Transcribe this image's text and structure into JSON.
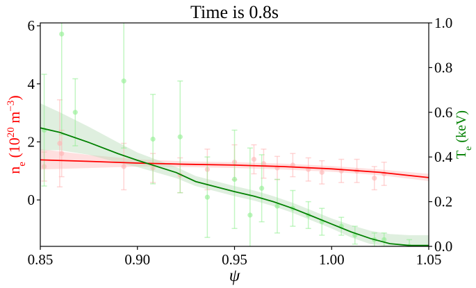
{
  "chart_data": {
    "type": "scatter",
    "title": "Time is 0.8s",
    "xlabel": "ψ",
    "ylabel_left": {
      "base": "n",
      "sub": "e",
      "paren_open": " (10",
      "sup1": "20",
      "unit": " m",
      "sup2": "−3",
      "paren_close": ")"
    },
    "ylabel_right": {
      "base": "T",
      "sub": "e",
      "rest": " (keV)"
    },
    "xlim": [
      0.85,
      1.05
    ],
    "ylim_left": [
      -1.6,
      6.1
    ],
    "ylim_right": [
      0.0,
      1.0
    ],
    "x_ticks": [
      "0.85",
      "0.90",
      "0.95",
      "1.00",
      "1.05"
    ],
    "y_ticks_left": [
      "0",
      "2",
      "4",
      "6"
    ],
    "y_ticks_right": [
      "0.0",
      "0.2",
      "0.4",
      "0.6",
      "0.8",
      "1.0"
    ],
    "grid": false,
    "colors": {
      "ne": "#ff0000",
      "ne_band": "#ffb8b8",
      "ne_points": "#ffb3b3",
      "te": "#008000",
      "te_band": "#b9dcb9",
      "te_points": "#90ee90"
    },
    "series": [
      {
        "key": "ne_fit",
        "kind": "line",
        "axis": "left",
        "x": [
          0.85,
          0.875,
          0.9,
          0.925,
          0.95,
          0.975,
          1.0,
          1.025,
          1.05
        ],
        "y": [
          1.38,
          1.33,
          1.27,
          1.23,
          1.2,
          1.15,
          1.07,
          0.95,
          0.77
        ],
        "band_lower": [
          1.05,
          1.1,
          1.15,
          1.13,
          1.1,
          1.05,
          0.97,
          0.85,
          0.65
        ],
        "band_upper": [
          1.75,
          1.55,
          1.4,
          1.33,
          1.3,
          1.25,
          1.17,
          1.05,
          0.9
        ]
      },
      {
        "key": "te_fit",
        "kind": "line",
        "axis": "right",
        "x": [
          0.85,
          0.86,
          0.875,
          0.89,
          0.9,
          0.92,
          0.93,
          0.95,
          0.96,
          0.97,
          0.98,
          0.99,
          1.0,
          1.01,
          1.02,
          1.03,
          1.04,
          1.05
        ],
        "y": [
          0.53,
          0.51,
          0.465,
          0.415,
          0.385,
          0.33,
          0.29,
          0.245,
          0.225,
          0.2,
          0.17,
          0.135,
          0.1,
          0.065,
          0.035,
          0.012,
          0.004,
          0.004
        ],
        "band_lower": [
          0.43,
          0.43,
          0.41,
          0.375,
          0.355,
          0.305,
          0.27,
          0.225,
          0.205,
          0.18,
          0.15,
          0.115,
          0.08,
          0.04,
          0.01,
          0.0,
          0.0,
          0.0
        ],
        "band_upper": [
          0.64,
          0.6,
          0.535,
          0.465,
          0.42,
          0.355,
          0.315,
          0.27,
          0.25,
          0.225,
          0.195,
          0.16,
          0.125,
          0.095,
          0.07,
          0.055,
          0.05,
          0.05
        ]
      },
      {
        "key": "ne_data",
        "kind": "points",
        "axis": "left",
        "x": [
          0.852,
          0.86,
          0.861,
          0.893,
          0.908,
          0.922,
          0.936,
          0.95,
          0.96,
          0.965,
          0.972,
          0.98,
          0.988,
          0.995,
          1.005,
          1.013,
          1.022,
          1.027
        ],
        "y": [
          1.15,
          1.95,
          1.6,
          1.15,
          1.1,
          0.85,
          1.05,
          1.3,
          1.4,
          1.25,
          1.1,
          1.2,
          1.05,
          0.95,
          1.0,
          1.0,
          0.75,
          0.9
        ],
        "err": [
          0.5,
          1.5,
          0.8,
          0.8,
          0.5,
          0.6,
          0.7,
          0.6,
          0.5,
          0.5,
          0.4,
          0.4,
          0.4,
          0.4,
          0.4,
          0.4,
          0.4,
          0.4
        ]
      },
      {
        "key": "te_data",
        "kind": "points",
        "axis": "right",
        "x": [
          0.852,
          0.861,
          0.868,
          0.893,
          0.908,
          0.922,
          0.936,
          0.95,
          0.958,
          0.964,
          0.972,
          0.98,
          0.988,
          0.995,
          1.005,
          1.012,
          1.022,
          1.027,
          1.04
        ],
        "y": [
          0.52,
          0.95,
          0.6,
          0.74,
          0.48,
          0.49,
          0.22,
          0.3,
          0.14,
          0.26,
          0.18,
          0.17,
          0.14,
          0.11,
          0.09,
          0.05,
          0.03,
          0.03,
          0.0
        ],
        "err": [
          0.25,
          0.45,
          0.15,
          0.3,
          0.2,
          0.25,
          0.18,
          0.22,
          0.3,
          0.15,
          0.12,
          0.08,
          0.06,
          0.06,
          0.04,
          0.04,
          0.03,
          0.03,
          0.03
        ]
      }
    ]
  }
}
